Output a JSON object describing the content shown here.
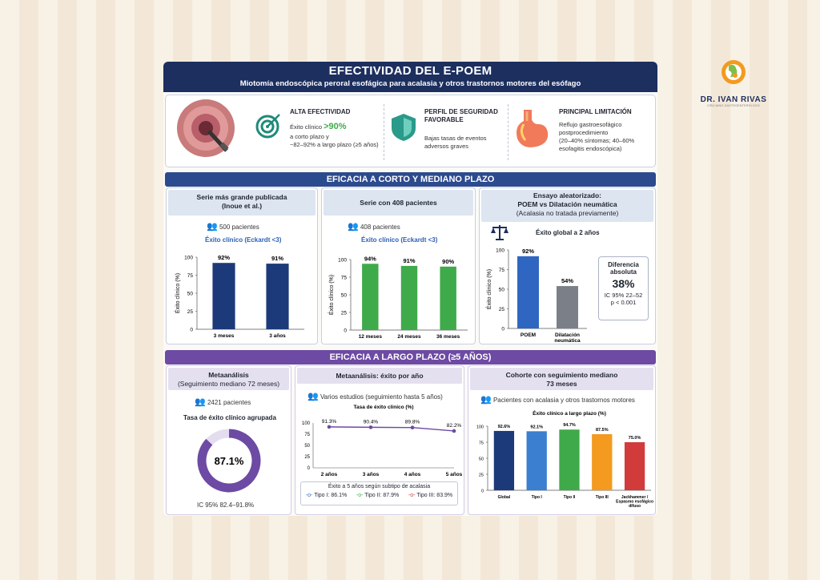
{
  "header": {
    "title": "EFECTIVIDAD DEL E-POEM",
    "subtitle": "Miotomía endoscópica peroral esofágica para acalasia y otros trastornos motores del esófago"
  },
  "brand": {
    "name": "DR. IVAN RIVAS",
    "tagline": "CIRUJANO GASTROENTERÓLOGO"
  },
  "features": [
    {
      "title": "ALTA EFECTIVIDAD",
      "line1_prefix": "Éxito clínico ",
      "highlight": ">90%",
      "line2": "a corto plazo y",
      "line3": "~82–92% a largo plazo (≥5 años)"
    },
    {
      "title": "PERFIL DE SEGURIDAD FAVORABLE",
      "line1": "Bajas tasas de eventos",
      "line2": "adversos graves"
    },
    {
      "title": "PRINCIPAL LIMITACIÓN",
      "line1": "Reflujo gastroesofágico",
      "line2": "postprocedimiento",
      "line3": "(20–40% síntomas; 40–60%",
      "line4": "esofagitis endoscópica)"
    }
  ],
  "section1": "EFICACIA A CORTO Y MEDIANO PLAZO",
  "section2": "EFICACIA A LARGO PLAZO (≥5 AÑOS)",
  "cards": {
    "c1": {
      "title1": "Serie más grande publicada",
      "title2": "(Inoue et al.)",
      "patients": "500 pacientes",
      "metric": "Éxito clínico (Eckardt <3)"
    },
    "c2": {
      "title": "Serie con 408 pacientes",
      "patients": "408 pacientes",
      "metric": "Éxito clínico (Eckardt <3)"
    },
    "c3": {
      "title1": "Ensayo aleatorizado:",
      "title2": "POEM vs Dilatación neumática",
      "title3": "(Acalasia no tratada previamente)",
      "metric": "Éxito global a 2 años",
      "diff_label1": "Diferencia",
      "diff_label2": "absoluta",
      "diff_value": "38%",
      "ci": "IC 95% 22–52",
      "p": "p < 0.001"
    },
    "c4": {
      "title": "Metaanálisis",
      "sub": "(Seguimiento mediano 72 meses)",
      "patients": "2421 pacientes",
      "metric": "Tasa de éxito clínico agrupada",
      "value": "87.1%",
      "ci": "IC 95% 82.4–91.8%"
    },
    "c5": {
      "title": "Metaanálisis: éxito por año",
      "patients": "Varios estudios (seguimiento hasta 5 años)",
      "legend_title": "Éxito a 5 años según subtipo de acalasia",
      "legend": [
        "Tipo I: 86.1%",
        "Tipo II: 87.9%",
        "Tipo III: 83.9%"
      ]
    },
    "c6": {
      "title1": "Cohorte con seguimiento mediano",
      "title2": "73 meses",
      "patients": "Pacientes con acalasia y otros trastornos motores"
    }
  },
  "chart_data": [
    {
      "type": "bar",
      "categories": [
        "3 meses",
        "3 años"
      ],
      "values": [
        92,
        91
      ],
      "labels": [
        "92%",
        "91%"
      ],
      "ylabel": "Éxito clínico (%)",
      "ylim": [
        0,
        100
      ],
      "color": "#1c3a7a"
    },
    {
      "type": "bar",
      "categories": [
        "12 meses",
        "24 meses",
        "36 meses"
      ],
      "values": [
        94,
        91,
        90
      ],
      "labels": [
        "94%",
        "91%",
        "90%"
      ],
      "ylabel": "Éxito clínico (%)",
      "ylim": [
        0,
        100
      ],
      "color": "#3faa4a"
    },
    {
      "type": "bar",
      "categories": [
        "POEM",
        "Dilatación\nneumática"
      ],
      "values": [
        92,
        54
      ],
      "labels": [
        "92%",
        "54%"
      ],
      "ylabel": "Éxito clínico (%)",
      "ylim": [
        0,
        100
      ],
      "colors": [
        "#2e66c2",
        "#7a7f88"
      ]
    },
    {
      "type": "pie",
      "values": [
        87.1,
        12.9
      ],
      "label": "87.1%",
      "colors": [
        "#6d4aa3",
        "#e3ddef"
      ]
    },
    {
      "type": "line",
      "title": "Tasa de éxito clínico (%)",
      "categories": [
        "2 años",
        "3 años",
        "4 años",
        "5 años"
      ],
      "values": [
        91.3,
        90.4,
        89.8,
        82.2
      ],
      "labels": [
        "91.3%",
        "90.4%",
        "89.8%",
        "82.2%"
      ],
      "ylim": [
        0,
        100
      ],
      "color": "#6d4aa3"
    },
    {
      "type": "bar",
      "title": "Éxito clínico a largo plazo (%)",
      "categories": [
        "Global",
        "Tipo I",
        "Tipo II",
        "Tipo III",
        "Jackhammer /\nEspasmo esofágico\ndifuso"
      ],
      "values": [
        92.6,
        92.1,
        94.7,
        87.5,
        75.0
      ],
      "labels": [
        "92.6%",
        "92.1%",
        "94.7%",
        "87.5%",
        "75.0%"
      ],
      "ylim": [
        0,
        100
      ],
      "colors": [
        "#1c3a7a",
        "#3a7fd0",
        "#3faa4a",
        "#f39a1f",
        "#d23b3b"
      ]
    }
  ]
}
